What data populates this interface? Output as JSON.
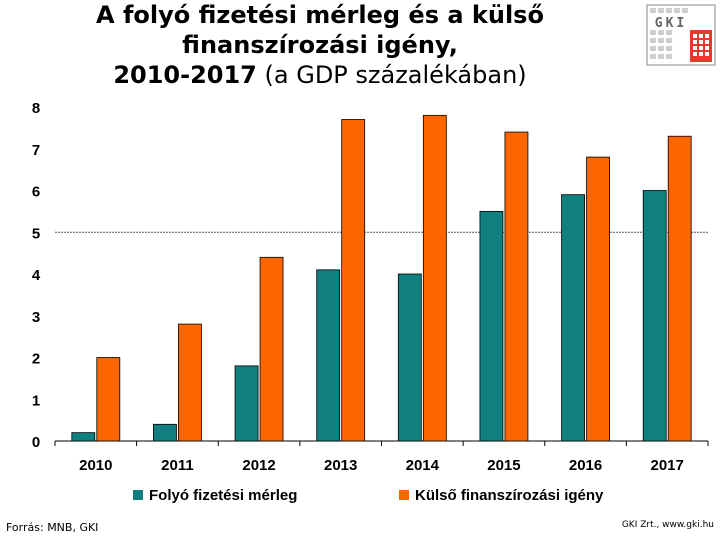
{
  "header": {
    "title_line1": "A folyó fizetési mérleg és a külső",
    "title_line2": "finanszírozási igény,",
    "title_line3_bold": "2010-2017",
    "title_line3_rest": " (a GDP százalékában)"
  },
  "logo": {
    "text": "GKI",
    "icon": "gki-logo-icon"
  },
  "footer": {
    "source": "Forrás: MNB, GKI",
    "credit": "GKI Zrt., www.gki.hu"
  },
  "colors": {
    "teal": "#0f7f7f",
    "orange": "#ff6600",
    "refline": "#555555"
  },
  "chart_data": {
    "type": "bar",
    "title": "A folyó fizetési mérleg és a külső finanszírozási igény, 2010-2017 (a GDP százalékában)",
    "categories": [
      "2010",
      "2011",
      "2012",
      "2013",
      "2014",
      "2015",
      "2016",
      "2017"
    ],
    "series": [
      {
        "name": "Folyó fizetési mérleg",
        "values": [
          0.2,
          0.4,
          1.8,
          4.1,
          4.0,
          5.5,
          5.9,
          6.0
        ]
      },
      {
        "name": "Külső finanszírozási igény",
        "values": [
          2.0,
          2.8,
          4.4,
          7.7,
          7.8,
          7.4,
          6.8,
          7.3
        ]
      }
    ],
    "ylim": [
      0,
      8
    ],
    "yticks": [
      "0",
      "1",
      "2",
      "3",
      "4",
      "5",
      "6",
      "7",
      "8"
    ],
    "reference_line": 5,
    "xlabel": "",
    "ylabel": "",
    "legend": "bottom"
  }
}
